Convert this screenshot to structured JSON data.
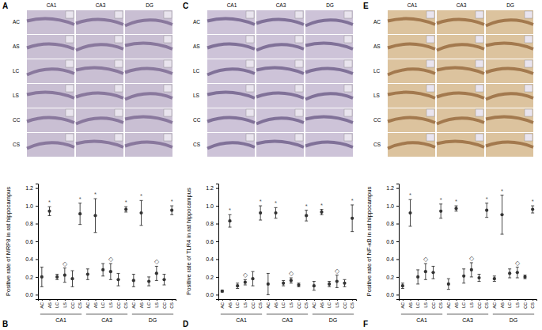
{
  "image_panels": [
    {
      "label": "A",
      "columns": [
        "CA1",
        "CA3",
        "DG"
      ],
      "rows": [
        "AC",
        "AS",
        "LC",
        "LS",
        "CC",
        "CS"
      ]
    },
    {
      "label": "C",
      "columns": [
        "CA1",
        "CA3",
        "DG"
      ],
      "rows": [
        "AC",
        "AS",
        "LC",
        "LS",
        "CC",
        "CS"
      ]
    },
    {
      "label": "E",
      "columns": [
        "CA1",
        "CA3",
        "DG"
      ],
      "rows": [
        "AC",
        "AS",
        "LC",
        "LS",
        "CC",
        "CS"
      ]
    }
  ],
  "chart_data": [
    {
      "type": "dot",
      "panel_label": "B",
      "ylabel": "Positive rate of MRP8 in rat hippocampus",
      "color": "#333333",
      "marker": "circle",
      "categories": [
        "AC",
        "AS",
        "LC",
        "LS",
        "CC",
        "CS",
        "AC",
        "AS",
        "LC",
        "LS",
        "CC",
        "CS",
        "AC",
        "AS",
        "LC",
        "LS",
        "CC",
        "CS"
      ],
      "groups": [
        "CA1",
        "CA3",
        "DG"
      ],
      "values": [
        0.2,
        0.94,
        0.2,
        0.22,
        0.18,
        0.91,
        0.23,
        0.89,
        0.28,
        0.26,
        0.17,
        0.96,
        0.16,
        0.92,
        0.15,
        0.24,
        0.17,
        0.95
      ],
      "errors": [
        0.11,
        0.05,
        0.03,
        0.08,
        0.09,
        0.12,
        0.06,
        0.19,
        0.07,
        0.09,
        0.07,
        0.03,
        0.07,
        0.14,
        0.05,
        0.08,
        0.06,
        0.05
      ],
      "annotations": [
        null,
        "*",
        null,
        "◇",
        null,
        "*",
        null,
        "*",
        null,
        "◇",
        null,
        "*",
        null,
        "*",
        null,
        "◇",
        null,
        "*"
      ],
      "ylim": [
        -0.05,
        1.25
      ],
      "yticks": [
        {
          "value": 0,
          "label": "0.0"
        },
        {
          "value": 0.2,
          "label": "0.2"
        },
        {
          "value": 0.4,
          "label": "0.4"
        },
        {
          "value": 0.6,
          "label": "0.6"
        },
        {
          "value": 0.8,
          "label": "0.8"
        },
        {
          "value": 1,
          "label": "1.0"
        },
        {
          "value": 1.2,
          "label": "1.2"
        }
      ]
    },
    {
      "type": "dot",
      "panel_label": "D",
      "ylabel": "Positive rate of TLR4 in rat hippocampus",
      "color": "#333333",
      "marker": "circle",
      "categories": [
        "AC",
        "AS",
        "LC",
        "LS",
        "CC",
        "CS",
        "AC",
        "AS",
        "LC",
        "LS",
        "CC",
        "CS",
        "AC",
        "AS",
        "LC",
        "LS",
        "CC",
        "CS"
      ],
      "groups": [
        "CA1",
        "CA3",
        "DG"
      ],
      "values": [
        0.04,
        0.83,
        0.1,
        0.14,
        0.18,
        0.92,
        0.12,
        0.92,
        0.13,
        0.16,
        0.11,
        0.89,
        0.1,
        0.93,
        0.12,
        0.15,
        0.13,
        0.86
      ],
      "errors": [
        0.01,
        0.07,
        0.03,
        0.03,
        0.08,
        0.08,
        0.12,
        0.06,
        0.03,
        0.03,
        0.02,
        0.06,
        0.05,
        0.03,
        0.03,
        0.07,
        0.04,
        0.15
      ],
      "annotations": [
        null,
        "*",
        null,
        "◇",
        null,
        "*",
        null,
        "*",
        null,
        "◇",
        null,
        "*",
        null,
        "*",
        null,
        "◇",
        null,
        "*"
      ],
      "ylim": [
        -0.05,
        1.25
      ],
      "yticks": [
        {
          "value": 0,
          "label": "0.0"
        },
        {
          "value": 0.2,
          "label": "0.2"
        },
        {
          "value": 0.4,
          "label": "0.4"
        },
        {
          "value": 0.6,
          "label": "0.6"
        },
        {
          "value": 0.8,
          "label": "0.8"
        },
        {
          "value": 1,
          "label": "1.0"
        },
        {
          "value": 1.2,
          "label": "1.2"
        }
      ]
    },
    {
      "type": "dot",
      "panel_label": "F",
      "ylabel": "Positive rate of NF-κB in rat hippocampus",
      "color": "#333333",
      "marker": "circle",
      "categories": [
        "AC",
        "AS",
        "LC",
        "LS",
        "CC",
        "CS",
        "AC",
        "AS",
        "LC",
        "LS",
        "CC",
        "CS",
        "AC",
        "AS",
        "LC",
        "LS",
        "CC",
        "CS"
      ],
      "groups": [
        "CA1",
        "CA3",
        "DG"
      ],
      "values": [
        0.1,
        0.92,
        0.2,
        0.26,
        0.25,
        0.94,
        0.12,
        0.97,
        0.21,
        0.28,
        0.19,
        0.95,
        0.18,
        0.9,
        0.24,
        0.25,
        0.2,
        0.96
      ],
      "errors": [
        0.03,
        0.15,
        0.08,
        0.09,
        0.07,
        0.08,
        0.06,
        0.03,
        0.08,
        0.08,
        0.04,
        0.08,
        0.03,
        0.22,
        0.05,
        0.06,
        0.02,
        0.04
      ],
      "annotations": [
        null,
        "*",
        null,
        "◇",
        null,
        "*",
        null,
        "*",
        null,
        "◇",
        null,
        "*",
        null,
        "*",
        null,
        "◇",
        null,
        "*"
      ],
      "ylim": [
        -0.05,
        1.25
      ],
      "yticks": [
        {
          "value": 0,
          "label": "0.0"
        },
        {
          "value": 0.2,
          "label": "0.2"
        },
        {
          "value": 0.4,
          "label": "0.4"
        },
        {
          "value": 0.6,
          "label": "0.6"
        },
        {
          "value": 0.8,
          "label": "0.8"
        },
        {
          "value": 1,
          "label": "1.0"
        },
        {
          "value": 1.2,
          "label": "1.2"
        }
      ]
    }
  ]
}
